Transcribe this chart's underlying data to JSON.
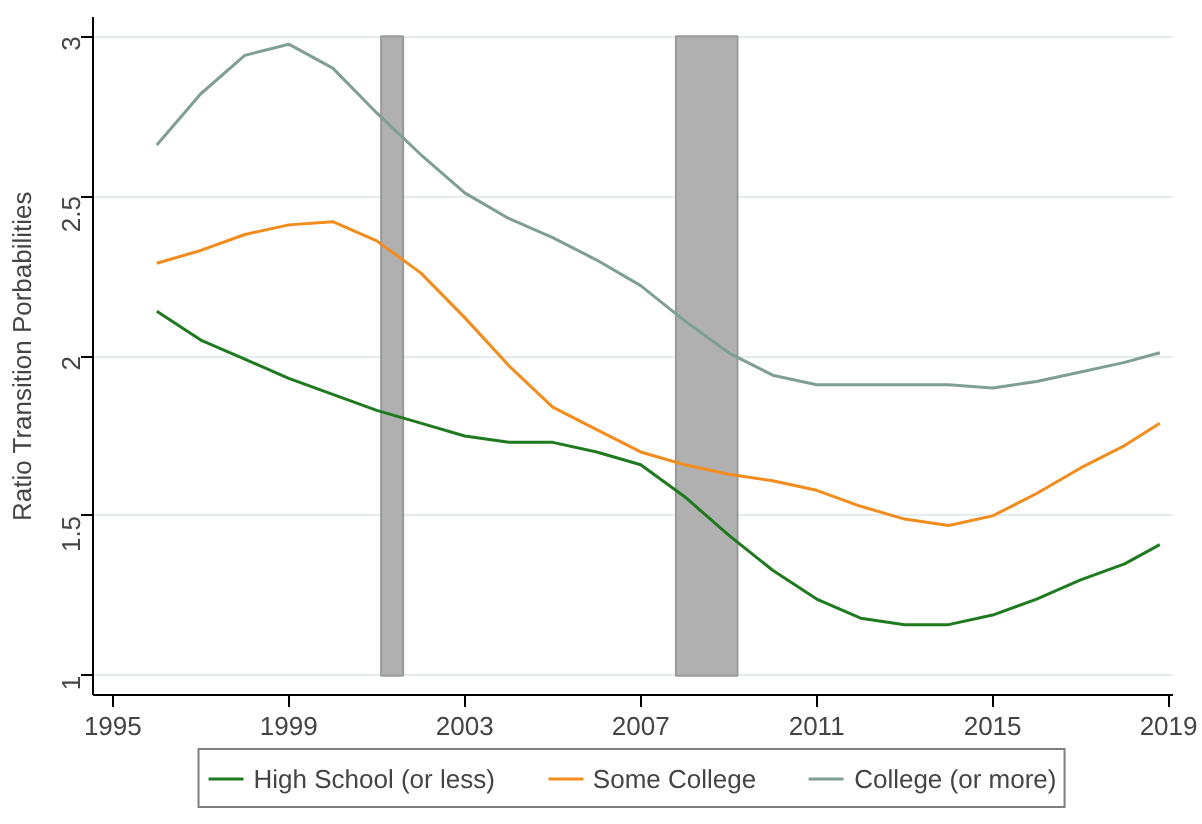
{
  "chart_data": {
    "type": "line",
    "ylabel": "Ratio Transition Porbabilities",
    "xlim": [
      1994.55,
      2019.1
    ],
    "xticks": [
      1995,
      1999,
      2003,
      2007,
      2011,
      2015,
      2019
    ],
    "ylim": [
      0.94,
      3.06
    ],
    "yticks": [
      1,
      1.5,
      2,
      2.5,
      3
    ],
    "grid": "y",
    "legend": "bottom",
    "line_style": "solid",
    "bands": [
      {
        "axis": "x",
        "from": 2001.1,
        "to": 2001.6,
        "color": "#b0b0b0"
      },
      {
        "axis": "x",
        "from": 2007.8,
        "to": 2009.2,
        "color": "#b0b0b0"
      }
    ],
    "x": [
      1996,
      1997,
      1998,
      1999,
      2000,
      2001,
      2002,
      2003,
      2004,
      2005,
      2006,
      2007,
      2008,
      2009,
      2010,
      2011,
      2012,
      2013,
      2014,
      2015,
      2016,
      2017,
      2018,
      2018.8
    ],
    "series": [
      {
        "name": "High School (or less)",
        "color": "#1f7a1f",
        "values": [
          2.14,
          2.05,
          1.99,
          1.93,
          1.88,
          1.83,
          1.79,
          1.75,
          1.73,
          1.73,
          1.7,
          1.66,
          1.56,
          1.44,
          1.33,
          1.24,
          1.18,
          1.16,
          1.16,
          1.19,
          1.24,
          1.3,
          1.35,
          1.41
        ]
      },
      {
        "name": "Some College",
        "color": "#f28c1c",
        "values": [
          2.29,
          2.33,
          2.38,
          2.41,
          2.42,
          2.36,
          2.26,
          2.12,
          1.97,
          1.84,
          1.77,
          1.7,
          1.66,
          1.63,
          1.61,
          1.58,
          1.53,
          1.49,
          1.47,
          1.5,
          1.57,
          1.65,
          1.72,
          1.79
        ]
      },
      {
        "name": "College (or more)",
        "color": "#7f9f94",
        "values": [
          2.66,
          2.82,
          2.94,
          2.975,
          2.9,
          2.76,
          2.63,
          2.51,
          2.43,
          2.37,
          2.3,
          2.22,
          2.11,
          2.01,
          1.94,
          1.91,
          1.91,
          1.91,
          1.91,
          1.9,
          1.92,
          1.95,
          1.98,
          2.01
        ]
      }
    ]
  }
}
